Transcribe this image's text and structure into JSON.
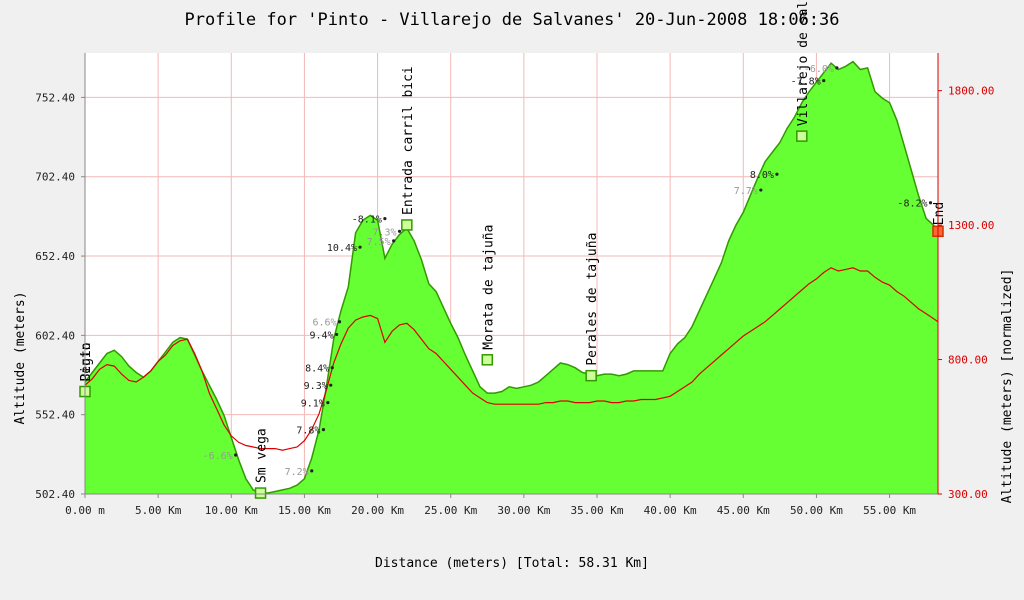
{
  "chart_data": {
    "type": "area",
    "title": "Profile for 'Pinto - Villarejo de Salvanes' 20-Jun-2008 18:06:36",
    "xlabel": "Distance (meters) [Total: 58.31 Km]",
    "ylabel": "Altitude (meters)",
    "ylabel_right": "Altitude (meters) [normalized]",
    "xlim": [
      0,
      58.31
    ],
    "ylim": [
      502.4,
      780.4
    ],
    "ylim_right": [
      300,
      1940
    ],
    "x_ticks": [
      {
        "v": 0,
        "label": "0.00 m"
      },
      {
        "v": 5,
        "label": "5.00 Km"
      },
      {
        "v": 10,
        "label": "10.00 Km"
      },
      {
        "v": 15,
        "label": "15.00 Km"
      },
      {
        "v": 20,
        "label": "20.00 Km"
      },
      {
        "v": 25,
        "label": "25.00 Km"
      },
      {
        "v": 30,
        "label": "30.00 Km"
      },
      {
        "v": 35,
        "label": "35.00 Km"
      },
      {
        "v": 40,
        "label": "40.00 Km"
      },
      {
        "v": 45,
        "label": "45.00 Km"
      },
      {
        "v": 50,
        "label": "50.00 Km"
      },
      {
        "v": 55,
        "label": "55.00 Km"
      }
    ],
    "y_ticks": [
      {
        "v": 502.4,
        "label": "502.40"
      },
      {
        "v": 552.4,
        "label": "552.40"
      },
      {
        "v": 602.4,
        "label": "602.40"
      },
      {
        "v": 652.4,
        "label": "652.40"
      },
      {
        "v": 702.4,
        "label": "702.40"
      },
      {
        "v": 752.4,
        "label": "752.40"
      }
    ],
    "y_ticks_right": [
      {
        "v": 300,
        "label": "300.00"
      },
      {
        "v": 800,
        "label": "800.00"
      },
      {
        "v": 1300,
        "label": "1300.00"
      },
      {
        "v": 1800,
        "label": "1800.00"
      }
    ],
    "grid": true,
    "colors": {
      "area_fill": "#66ff33",
      "area_stroke": "#339900",
      "normalized_line": "#dd0000",
      "right_axis": "#dd0000",
      "grid": "#f4b8b8",
      "marker_fill": "#ccff99",
      "marker_stroke": "#339900",
      "end_marker_fill": "#ff6633",
      "end_marker_stroke": "#cc3300"
    },
    "series": [
      {
        "x": [
          0,
          0.5,
          1,
          1.5,
          2,
          2.5,
          3,
          3.5,
          4,
          4.5,
          5,
          5.5,
          6,
          6.5,
          7,
          7.5,
          8,
          8.5,
          9,
          9.5,
          10,
          10.5,
          11,
          11.5,
          12,
          12.5,
          13,
          13.5,
          14,
          14.5,
          15,
          15.5,
          16,
          16.5,
          17,
          17.5,
          18,
          18.5,
          19,
          19.5,
          20,
          20.5,
          21,
          21.5,
          22,
          22.5,
          23,
          23.5,
          24,
          24.5,
          25,
          25.5,
          26,
          26.5,
          27,
          27.5,
          28,
          28.5,
          29,
          29.5,
          30,
          30.5,
          31,
          31.5,
          32,
          32.5,
          33,
          33.5,
          34,
          34.5,
          35,
          35.5,
          36,
          36.5,
          37,
          37.5,
          38,
          38.5,
          39,
          39.5,
          40,
          40.5,
          41,
          41.5,
          42,
          42.5,
          43,
          43.5,
          44,
          44.5,
          45,
          45.5,
          46,
          46.5,
          47,
          47.5,
          48,
          48.5,
          49,
          49.5,
          50,
          50.5,
          51,
          51.5,
          52,
          52.5,
          53,
          53.5,
          54,
          54.5,
          55,
          55.5,
          56,
          56.5,
          57,
          57.5,
          58,
          58.31
        ],
        "values": [
          573,
          579,
          585,
          591,
          593,
          589,
          583,
          579,
          576,
          580,
          586,
          592,
          598,
          601,
          600,
          590,
          580,
          571,
          562,
          552,
          538,
          524,
          512,
          505,
          503,
          503,
          504,
          505,
          506,
          508,
          512,
          525,
          543,
          570,
          600,
          618,
          633,
          667,
          675,
          678,
          675,
          651,
          660,
          666,
          670,
          662,
          650,
          635,
          630,
          620,
          610,
          601,
          590,
          580,
          570,
          566,
          566,
          567,
          570,
          569,
          570,
          571,
          573,
          577,
          581,
          585,
          584,
          582,
          579,
          578,
          577,
          578,
          578,
          577,
          578,
          580,
          580,
          580,
          580,
          580,
          591,
          597,
          601,
          608,
          618,
          628,
          638,
          648,
          662,
          672,
          680,
          691,
          702,
          712,
          718,
          724,
          733,
          740,
          749,
          756,
          762,
          768,
          774,
          770,
          772,
          775,
          770,
          771,
          756,
          752,
          749,
          738,
          722,
          706,
          690,
          676,
          672,
          668
        ],
        "normalized": [
          571,
          575,
          581,
          584,
          583,
          578,
          574,
          573,
          576,
          580,
          586,
          590,
          596,
          599,
          600,
          591,
          580,
          566,
          556,
          546,
          539,
          535,
          533,
          532,
          531,
          531,
          531,
          530,
          531,
          532,
          536,
          543,
          553,
          568,
          585,
          597,
          607,
          612,
          614,
          615,
          613,
          598,
          605,
          609,
          610,
          606,
          600,
          594,
          591,
          586,
          581,
          576,
          571,
          566,
          563,
          560,
          559,
          559,
          559,
          559,
          559,
          559,
          559,
          560,
          560,
          561,
          561,
          560,
          560,
          560,
          561,
          561,
          560,
          560,
          561,
          561,
          562,
          562,
          562,
          563,
          564,
          567,
          570,
          573,
          578,
          582,
          586,
          590,
          594,
          598,
          602,
          605,
          608,
          611,
          615,
          619,
          623,
          627,
          631,
          635,
          638,
          642,
          645,
          643,
          644,
          645,
          643,
          643,
          639,
          636,
          634,
          630,
          627,
          623,
          619,
          616,
          613,
          611
        ]
      }
    ],
    "waypoints": [
      {
        "x": 0,
        "y": 567,
        "label": "Begin",
        "label2": "Pinto"
      },
      {
        "x": 12.0,
        "y": 503,
        "label": "Sm vega"
      },
      {
        "x": 22.0,
        "y": 672,
        "label": "Entrada carril bici"
      },
      {
        "x": 27.5,
        "y": 587,
        "label": "Morata de tajuña"
      },
      {
        "x": 34.6,
        "y": 577,
        "label": "Perales de tajuña"
      },
      {
        "x": 49.0,
        "y": 728,
        "label": "Villarejo de salvanes"
      },
      {
        "x": 58.31,
        "y": 668,
        "label": "End",
        "end": true
      }
    ],
    "grade_labels": [
      {
        "x": 10.3,
        "y": 527,
        "text": "-6.6%",
        "faded": true
      },
      {
        "x": 15.5,
        "y": 517,
        "text": "7.2%",
        "faded": true
      },
      {
        "x": 16.3,
        "y": 543,
        "text": "7.8%",
        "faded": false
      },
      {
        "x": 16.6,
        "y": 560,
        "text": "9.1%",
        "faded": false
      },
      {
        "x": 16.8,
        "y": 571,
        "text": "9.3%",
        "faded": false
      },
      {
        "x": 16.9,
        "y": 582,
        "text": "8.4%",
        "faded": false
      },
      {
        "x": 17.2,
        "y": 603,
        "text": "9.4%",
        "faded": false
      },
      {
        "x": 17.4,
        "y": 611,
        "text": "6.6%",
        "faded": true
      },
      {
        "x": 18.8,
        "y": 658,
        "text": "10.4%",
        "faded": false
      },
      {
        "x": 21.5,
        "y": 668,
        "text": "7.3%",
        "faded": true
      },
      {
        "x": 21.1,
        "y": 662,
        "text": "7.5%",
        "faded": true
      },
      {
        "x": 20.5,
        "y": 676,
        "text": "-8.1%",
        "faded": false
      },
      {
        "x": 46.2,
        "y": 694,
        "text": "7.7%",
        "faded": true
      },
      {
        "x": 47.3,
        "y": 704,
        "text": "8.0%",
        "faded": false
      },
      {
        "x": 50.5,
        "y": 763,
        "text": "-7.8%",
        "faded": false
      },
      {
        "x": 51.4,
        "y": 771,
        "text": "-6.0%",
        "faded": true
      },
      {
        "x": 57.8,
        "y": 686,
        "text": "-8.2%",
        "faded": false
      }
    ]
  }
}
